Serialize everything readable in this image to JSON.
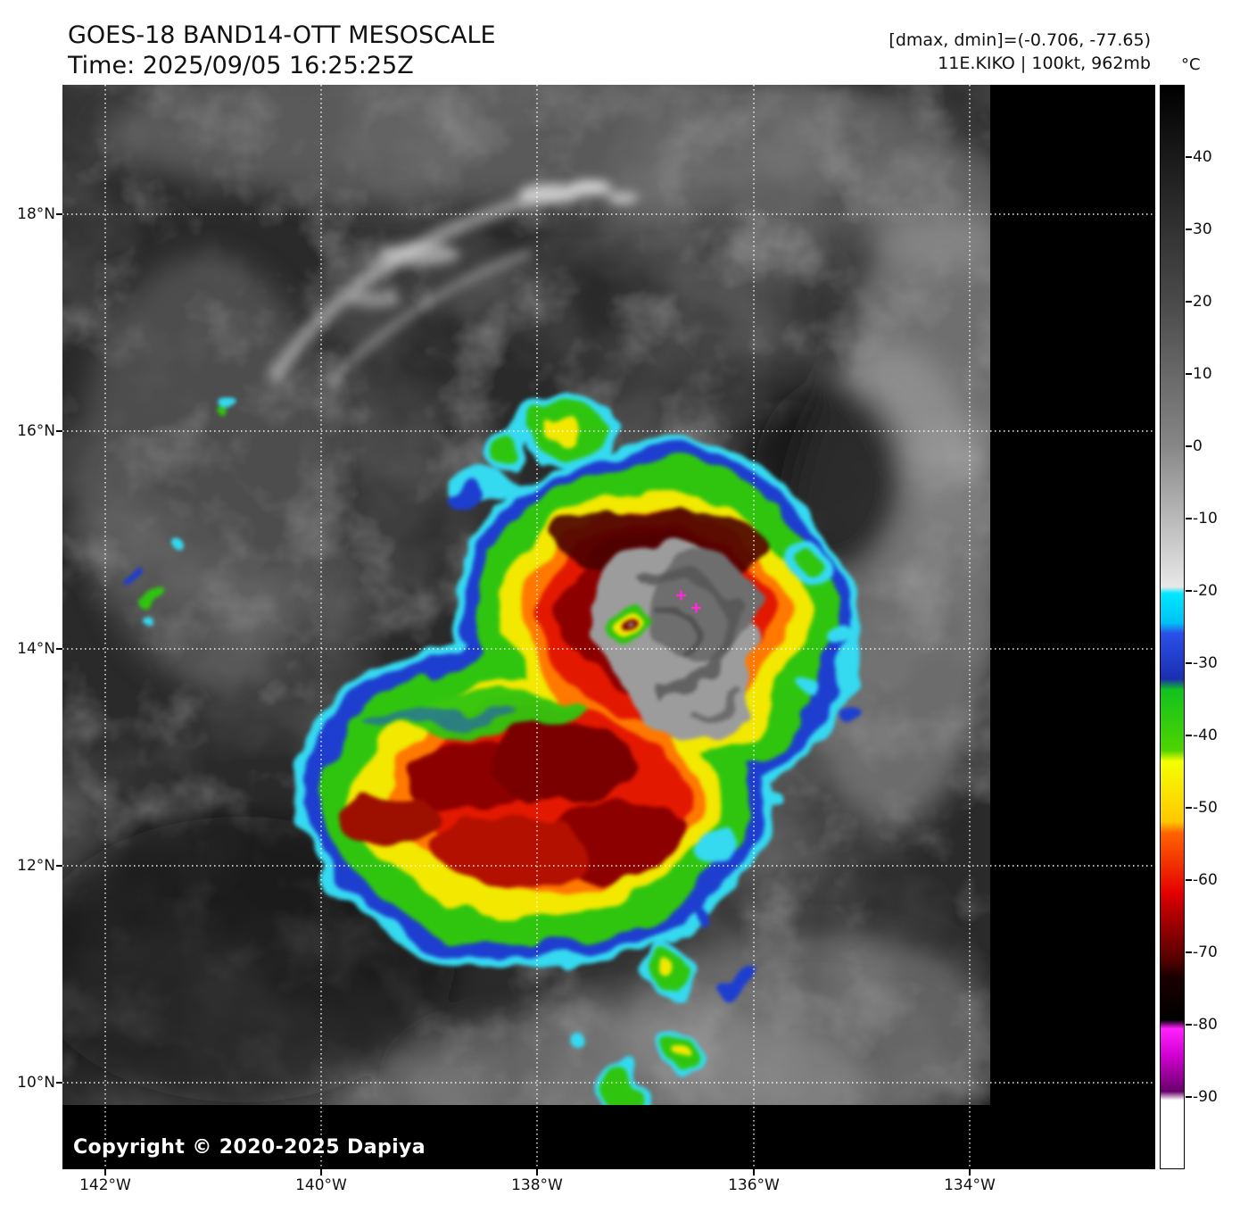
{
  "header": {
    "title": "GOES-18 BAND14-OTT MESOSCALE",
    "time": "Time: 2025/09/05 16:25:25Z",
    "stats": "[dmax, dmin]=(-0.706, -77.65)",
    "storm": "11E.KIKO | 100kt, 962mb"
  },
  "axes": {
    "lat_labels": [
      "18°N",
      "16°N",
      "14°N",
      "12°N",
      "10°N"
    ],
    "lon_labels": [
      "142°W",
      "140°W",
      "138°W",
      "136°W",
      "134°W"
    ]
  },
  "colorbar": {
    "unit": "°C",
    "domain": [
      50,
      -100
    ],
    "tick_values": [
      40,
      30,
      20,
      10,
      0,
      -10,
      -20,
      -30,
      -40,
      -50,
      -60,
      -70,
      -80,
      -90
    ],
    "tick_labels": [
      "40",
      "30",
      "20",
      "10",
      "0",
      "-10",
      "-20",
      "-30",
      "-40",
      "-50",
      "-60",
      "-70",
      "-80",
      "-90"
    ],
    "stops": [
      {
        "pct": 0,
        "color": "#000000"
      },
      {
        "pct": 8,
        "color": "#1f1f1f"
      },
      {
        "pct": 20,
        "color": "#4a4a4a"
      },
      {
        "pct": 33,
        "color": "#858585"
      },
      {
        "pct": 46.3,
        "color": "#e8e8e8"
      },
      {
        "pct": 46.9,
        "color": "#00e8ff"
      },
      {
        "pct": 49.6,
        "color": "#00c2f5"
      },
      {
        "pct": 50.6,
        "color": "#2a50e8"
      },
      {
        "pct": 54.8,
        "color": "#1b2fb0"
      },
      {
        "pct": 55.8,
        "color": "#12c21e"
      },
      {
        "pct": 61.4,
        "color": "#4fd400"
      },
      {
        "pct": 62.4,
        "color": "#f4ff00"
      },
      {
        "pct": 68.0,
        "color": "#ffc800"
      },
      {
        "pct": 69.0,
        "color": "#ff6400"
      },
      {
        "pct": 74.6,
        "color": "#e40000"
      },
      {
        "pct": 75.8,
        "color": "#c00000"
      },
      {
        "pct": 80.9,
        "color": "#500000"
      },
      {
        "pct": 82.2,
        "color": "#1c0000"
      },
      {
        "pct": 86.3,
        "color": "#000000"
      },
      {
        "pct": 87.1,
        "color": "#ff22ff"
      },
      {
        "pct": 89.6,
        "color": "#cf00cf"
      },
      {
        "pct": 92.9,
        "color": "#69006b"
      },
      {
        "pct": 93.7,
        "color": "#ffffff"
      },
      {
        "pct": 100,
        "color": "#ffffff"
      }
    ]
  },
  "footer": {
    "copyright": "Copyright © 2020-2025 Dapiya"
  }
}
